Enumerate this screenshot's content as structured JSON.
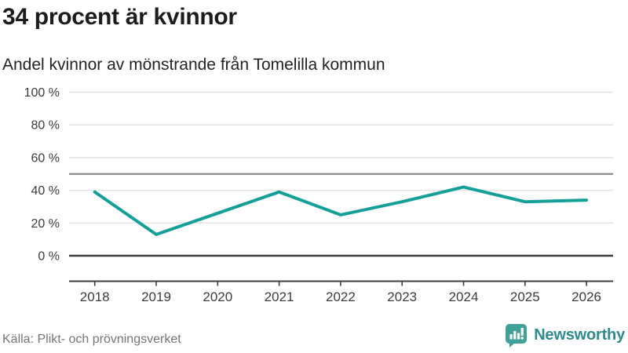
{
  "header": {
    "title": "34 procent är kvinnor",
    "subtitle": "Andel kvinnor av mönstrande från Tomelilla kommun"
  },
  "chart_data": {
    "type": "line",
    "title": "34 procent är kvinnor",
    "subtitle": "Andel kvinnor av mönstrande från Tomelilla kommun",
    "x": [
      2018,
      2019,
      2020,
      2021,
      2022,
      2023,
      2024,
      2025,
      2026
    ],
    "values": [
      39,
      13,
      26,
      39,
      25,
      33,
      42,
      33,
      34
    ],
    "unit": "%",
    "ylim": [
      0,
      100
    ],
    "yticks": [
      {
        "value": 100,
        "label": "100 %"
      },
      {
        "value": 80,
        "label": "80 %"
      },
      {
        "value": 60,
        "label": "60 %"
      },
      {
        "value": 40,
        "label": "40 %"
      },
      {
        "value": 20,
        "label": "20 %"
      },
      {
        "value": 0,
        "label": "0 %"
      }
    ],
    "reference_line": 50,
    "grid": true,
    "legend": "none"
  },
  "footer": {
    "source": "Källa: Plikt- och prövningsverket",
    "brand": "Newsworthy"
  },
  "colors": {
    "accent": "#14a098",
    "grid_light": "#e3e3e3",
    "grid_dark": "#3d3d3d",
    "reference": "#8a8a8a",
    "axis_text": "#3c3c3c",
    "brand_icon": "#41a097",
    "brand_text": "#2e8a8c"
  }
}
